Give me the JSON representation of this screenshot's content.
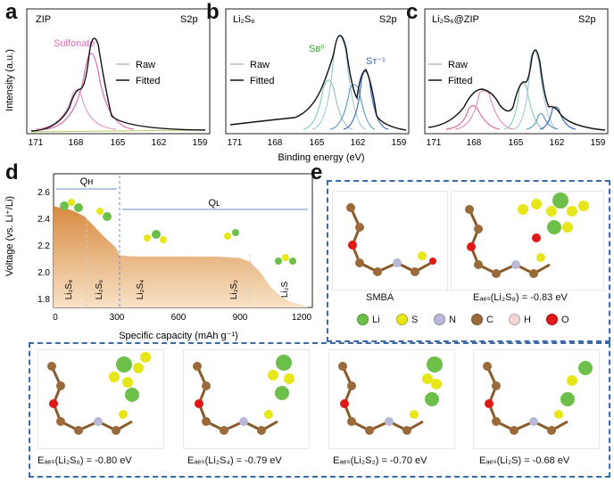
{
  "panel_letters": {
    "a": "a",
    "b": "b",
    "c": "c",
    "d": "d",
    "e": "e"
  },
  "xps_axis": {
    "xlabel": "Binding energy (eV)",
    "ylabel": "Intensity (a.u.)",
    "ticks": [
      "171",
      "168",
      "165",
      "162",
      "159"
    ]
  },
  "xps_panels": [
    {
      "sample": "ZIP",
      "orbital": "S2p",
      "annotations": [
        "Sulfonate"
      ],
      "legend": [
        "Raw",
        "Fitted"
      ]
    },
    {
      "sample": "Li₂S₆",
      "orbital": "S2p",
      "annotations": [
        "Sʙ⁰",
        "Sᴛ⁻¹"
      ],
      "legend": [
        "Raw",
        "Fitted"
      ]
    },
    {
      "sample": "Li₂S₆@ZIP",
      "orbital": "S2p",
      "annotations": [],
      "legend": [
        "Raw",
        "Fitted"
      ]
    }
  ],
  "discharge": {
    "xlabel": "Specific capacity (mAh g⁻¹)",
    "ylabel": "Voltage (vs. Li⁺/Li)",
    "xticks": [
      "0",
      "300",
      "600",
      "900",
      "1200"
    ],
    "yticks": [
      "1.8",
      "2.0",
      "2.2",
      "2.4",
      "2.6"
    ],
    "region_labels": [
      "Qʜ",
      "Qʟ"
    ],
    "species": [
      "Li₂S₈",
      "Li₂S₆",
      "Li₂S₄",
      "Li₂S₂",
      "Li₂S"
    ]
  },
  "molecules": {
    "smba_label": "SMBA",
    "legend": [
      {
        "symbol": "Li",
        "color": "#6cc04a"
      },
      {
        "symbol": "S",
        "color": "#e6e619"
      },
      {
        "symbol": "N",
        "color": "#b8b8d8"
      },
      {
        "symbol": "C",
        "color": "#9a6a3a"
      },
      {
        "symbol": "H",
        "color": "#f0d8d8"
      },
      {
        "symbol": "O",
        "color": "#e01818"
      }
    ],
    "energies": [
      "Eₐₑₛ(Li₂S₈) = -0.83 eV",
      "Eₐₑₛ(Li₂S₆) = -0.80 eV",
      "Eₐₑₛ(Li₂S₄) = -0.79 eV",
      "Eₐₑₛ(Li₂S₂) = -0.70 eV",
      "Eₐₑₛ(Li₂S) = -0.68 eV"
    ]
  },
  "chart_data": [
    {
      "type": "line",
      "title": "ZIP",
      "xlabel": "Binding energy (eV)",
      "ylabel": "Intensity (a.u.)",
      "xlim": [
        171,
        159
      ],
      "x_reversed": true,
      "legend_entries": [
        "Raw",
        "Fitted"
      ],
      "peaks": [
        {
          "center": 168.3,
          "label": "Sulfonate"
        },
        {
          "center": 167.2
        }
      ],
      "x": [
        171,
        170,
        169,
        168.5,
        168,
        167.5,
        167.2,
        167,
        166.5,
        166,
        165,
        164,
        163,
        162,
        161,
        160,
        159
      ],
      "series": [
        {
          "name": "Fitted",
          "values": [
            0.02,
            0.06,
            0.22,
            0.42,
            0.6,
            0.92,
            1.0,
            0.95,
            0.62,
            0.3,
            0.08,
            0.03,
            0.02,
            0.01,
            0.01,
            0.01,
            0.01
          ]
        }
      ]
    },
    {
      "type": "line",
      "title": "Li₂S₆",
      "xlabel": "Binding energy (eV)",
      "xlim": [
        171,
        159
      ],
      "x_reversed": true,
      "legend_entries": [
        "Raw",
        "Fitted"
      ],
      "peaks": [
        {
          "center": 163.2,
          "label": "Sʙ⁰"
        },
        {
          "center": 161.9,
          "label": "Sᴛ⁻¹"
        },
        {
          "center": 164.6
        }
      ],
      "x": [
        171,
        169,
        167,
        166,
        165,
        164.5,
        164,
        163.5,
        163.2,
        163,
        162.5,
        162,
        161.8,
        161.5,
        161,
        160,
        159
      ],
      "series": [
        {
          "name": "Fitted",
          "values": [
            0.04,
            0.06,
            0.1,
            0.18,
            0.4,
            0.62,
            0.78,
            0.95,
            1.0,
            0.85,
            0.55,
            0.68,
            0.7,
            0.5,
            0.2,
            0.05,
            0.02
          ]
        }
      ]
    },
    {
      "type": "line",
      "title": "Li₂S₆@ZIP",
      "xlabel": "Binding energy (eV)",
      "xlim": [
        171,
        159
      ],
      "x_reversed": true,
      "legend_entries": [
        "Raw",
        "Fitted"
      ],
      "x": [
        171,
        170,
        169,
        168.5,
        168,
        167.5,
        167,
        166,
        165,
        164.5,
        164,
        163.5,
        163.2,
        163,
        162.5,
        162,
        161.5,
        161,
        160,
        159
      ],
      "series": [
        {
          "name": "Fitted",
          "values": [
            0.03,
            0.08,
            0.2,
            0.35,
            0.48,
            0.5,
            0.42,
            0.28,
            0.5,
            0.68,
            0.62,
            0.88,
            1.0,
            0.82,
            0.4,
            0.24,
            0.16,
            0.08,
            0.03,
            0.02
          ]
        }
      ]
    },
    {
      "type": "area",
      "xlabel": "Specific capacity (mAh g⁻¹)",
      "ylabel": "Voltage (vs. Li⁺/Li)",
      "xlim": [
        0,
        1250
      ],
      "ylim": [
        1.7,
        2.7
      ],
      "regions": [
        {
          "label": "Qʜ",
          "range": [
            0,
            320
          ]
        },
        {
          "label": "Qʟ",
          "range": [
            320,
            1250
          ]
        }
      ],
      "x": [
        0,
        20,
        60,
        100,
        150,
        200,
        250,
        300,
        320,
        350,
        400,
        600,
        800,
        850,
        900,
        950,
        1000,
        1050,
        1100,
        1150,
        1200,
        1230
      ],
      "y": [
        2.46,
        2.45,
        2.44,
        2.42,
        2.38,
        2.3,
        2.22,
        2.15,
        2.09,
        2.085,
        2.082,
        2.082,
        2.08,
        2.075,
        2.07,
        2.04,
        1.96,
        1.85,
        1.78,
        1.74,
        1.72,
        1.7
      ]
    }
  ]
}
